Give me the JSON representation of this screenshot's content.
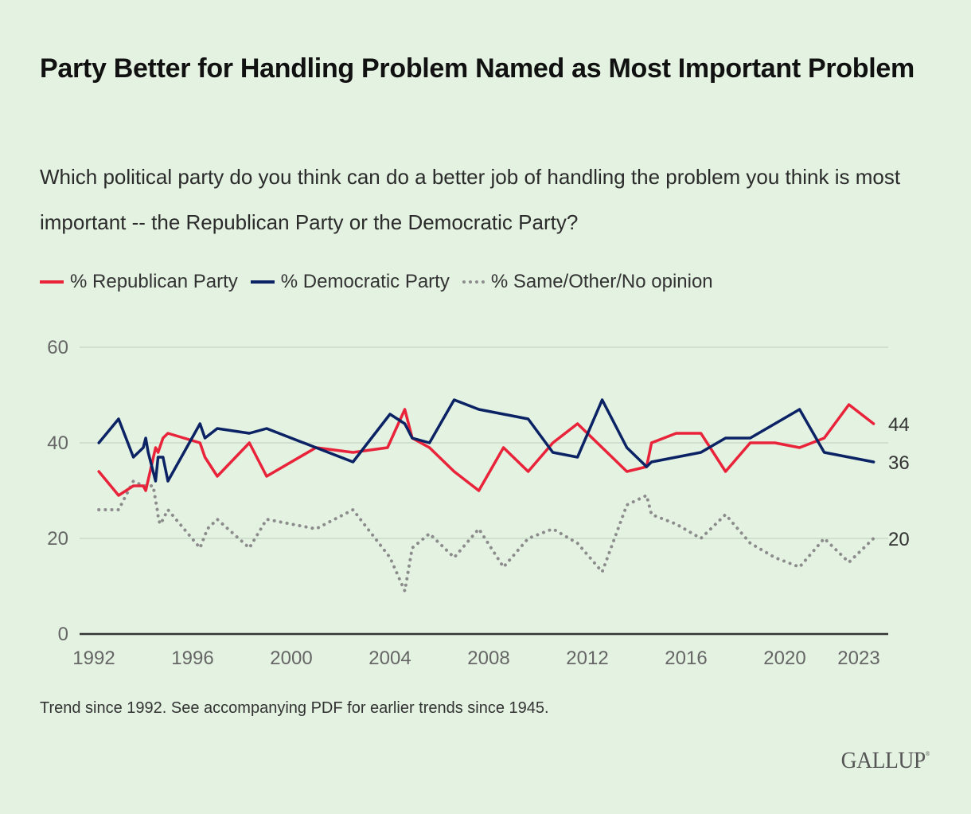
{
  "title": "Party Better for Handling Problem Named as Most Important Problem",
  "subtitle": "Which political party do you think can do a better job of handling the problem you think is most important -- the Republican Party or the Democratic Party?",
  "note": "Trend since 1992. See accompanying PDF for earlier trends since 1945.",
  "brand": "GALLUP",
  "colors": {
    "background": "#e3f2e1",
    "republican": "#e8233a",
    "democratic": "#0b2265",
    "other": "#8c8c8c",
    "grid": "#c9d9c7",
    "axis": "#333333"
  },
  "chart_data": {
    "type": "line",
    "title": "Party Better for Handling Problem Named as Most Important Problem",
    "xlabel": "",
    "ylabel": "",
    "ylim": [
      0,
      60
    ],
    "xlim": [
      1992,
      2023.6
    ],
    "yticks": [
      0,
      20,
      40,
      60
    ],
    "xticks": [
      {
        "value": 1992,
        "label": "1992"
      },
      {
        "value": 1996,
        "label": "1996"
      },
      {
        "value": 2000,
        "label": "2000"
      },
      {
        "value": 2004,
        "label": "2004"
      },
      {
        "value": 2008,
        "label": "2008"
      },
      {
        "value": 2012,
        "label": "2012"
      },
      {
        "value": 2016,
        "label": "2016"
      },
      {
        "value": 2020,
        "label": "2020"
      },
      {
        "value": 2023,
        "label": "2023"
      }
    ],
    "grid": true,
    "legend_position": "top-left",
    "series": [
      {
        "name": "% Republican Party",
        "style": "solid",
        "color_key": "republican",
        "end_label": "44",
        "points": [
          [
            1992.2,
            34
          ],
          [
            1993.0,
            29
          ],
          [
            1993.6,
            31
          ],
          [
            1994.0,
            31
          ],
          [
            1994.1,
            30
          ],
          [
            1994.5,
            39
          ],
          [
            1994.6,
            38
          ],
          [
            1994.8,
            41
          ],
          [
            1995.0,
            42
          ],
          [
            1996.3,
            40
          ],
          [
            1996.5,
            37
          ],
          [
            1997.0,
            33
          ],
          [
            1998.3,
            40
          ],
          [
            1999.0,
            33
          ],
          [
            2001.0,
            39
          ],
          [
            2002.5,
            38
          ],
          [
            2003.9,
            39
          ],
          [
            2004.6,
            47
          ],
          [
            2004.9,
            41
          ],
          [
            2005.6,
            39
          ],
          [
            2006.6,
            34
          ],
          [
            2007.6,
            30
          ],
          [
            2008.6,
            39
          ],
          [
            2009.6,
            34
          ],
          [
            2010.6,
            40
          ],
          [
            2011.6,
            44
          ],
          [
            2013.6,
            34
          ],
          [
            2014.4,
            35
          ],
          [
            2014.6,
            40
          ],
          [
            2015.6,
            42
          ],
          [
            2016.6,
            42
          ],
          [
            2017.6,
            34
          ],
          [
            2018.6,
            40
          ],
          [
            2019.6,
            40
          ],
          [
            2020.6,
            39
          ],
          [
            2021.6,
            41
          ],
          [
            2022.6,
            48
          ],
          [
            2023.6,
            44
          ]
        ]
      },
      {
        "name": "% Democratic Party",
        "style": "solid",
        "color_key": "democratic",
        "end_label": "36",
        "points": [
          [
            1992.2,
            40
          ],
          [
            1993.0,
            45
          ],
          [
            1993.6,
            37
          ],
          [
            1994.0,
            39
          ],
          [
            1994.1,
            41
          ],
          [
            1994.2,
            38
          ],
          [
            1994.5,
            32
          ],
          [
            1994.6,
            37
          ],
          [
            1994.8,
            37
          ],
          [
            1995.0,
            32
          ],
          [
            1996.3,
            44
          ],
          [
            1996.5,
            41
          ],
          [
            1997.0,
            43
          ],
          [
            1998.3,
            42
          ],
          [
            1999.0,
            43
          ],
          [
            2001.0,
            39
          ],
          [
            2002.5,
            36
          ],
          [
            2004.0,
            46
          ],
          [
            2004.6,
            44
          ],
          [
            2004.9,
            41
          ],
          [
            2005.6,
            40
          ],
          [
            2006.6,
            49
          ],
          [
            2007.6,
            47
          ],
          [
            2008.6,
            46
          ],
          [
            2009.6,
            45
          ],
          [
            2010.6,
            38
          ],
          [
            2011.6,
            37
          ],
          [
            2012.6,
            49
          ],
          [
            2013.6,
            39
          ],
          [
            2014.4,
            35
          ],
          [
            2014.6,
            36
          ],
          [
            2015.6,
            37
          ],
          [
            2016.6,
            38
          ],
          [
            2017.6,
            41
          ],
          [
            2018.6,
            41
          ],
          [
            2020.6,
            47
          ],
          [
            2021.6,
            38
          ],
          [
            2023.6,
            36
          ]
        ]
      },
      {
        "name": "% Same/Other/No opinion",
        "style": "dotted",
        "color_key": "other",
        "end_label": "20",
        "points": [
          [
            1992.2,
            26
          ],
          [
            1993.0,
            26
          ],
          [
            1993.3,
            29
          ],
          [
            1993.6,
            32
          ],
          [
            1994.0,
            31
          ],
          [
            1994.4,
            31
          ],
          [
            1994.6,
            25
          ],
          [
            1994.6,
            24
          ],
          [
            1994.7,
            23
          ],
          [
            1995.0,
            26
          ],
          [
            1996.3,
            18
          ],
          [
            1996.6,
            22
          ],
          [
            1997.0,
            24
          ],
          [
            1998.3,
            18
          ],
          [
            1999.0,
            24
          ],
          [
            2001.0,
            22
          ],
          [
            2002.5,
            26
          ],
          [
            2004.0,
            16
          ],
          [
            2004.6,
            9
          ],
          [
            2004.9,
            18
          ],
          [
            2005.6,
            21
          ],
          [
            2006.6,
            16
          ],
          [
            2007.6,
            22
          ],
          [
            2008.6,
            14
          ],
          [
            2009.6,
            20
          ],
          [
            2010.6,
            22
          ],
          [
            2011.6,
            19
          ],
          [
            2012.6,
            13
          ],
          [
            2013.6,
            27
          ],
          [
            2014.4,
            29
          ],
          [
            2014.6,
            25
          ],
          [
            2015.6,
            23
          ],
          [
            2016.6,
            20
          ],
          [
            2017.6,
            25
          ],
          [
            2018.6,
            19
          ],
          [
            2019.6,
            16
          ],
          [
            2020.6,
            14
          ],
          [
            2021.6,
            20
          ],
          [
            2022.6,
            15
          ],
          [
            2023.6,
            20
          ]
        ]
      }
    ]
  }
}
